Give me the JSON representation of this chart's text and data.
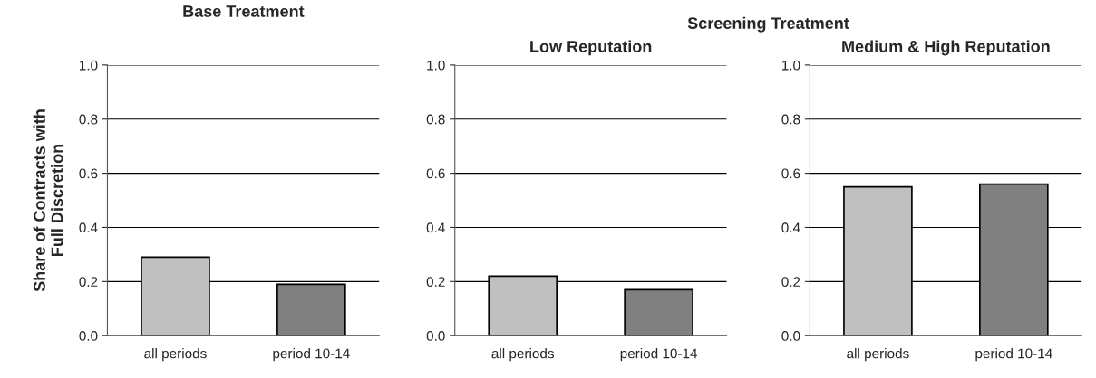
{
  "chart_data": [
    {
      "type": "bar",
      "title": "Base Treatment",
      "ylabel": "Share of Contracts with\nFull Discretion",
      "categories": [
        "all periods",
        "period 10-14"
      ],
      "values": [
        0.29,
        0.19
      ],
      "colors": [
        "#c0c0c0",
        "#808080"
      ],
      "ylim": [
        0,
        1
      ],
      "yticks": [
        {
          "value": 0,
          "label": "0.0"
        },
        {
          "value": 0.2,
          "label": "0.2"
        },
        {
          "value": 0.4,
          "label": "0.4"
        },
        {
          "value": 0.6,
          "label": "0.6"
        },
        {
          "value": 0.8,
          "label": "0.8"
        },
        {
          "value": 1,
          "label": "1.0"
        }
      ],
      "grid": "y"
    },
    {
      "type": "bar",
      "title": "Low Reputation",
      "annotations": [
        "Screening Treatment"
      ],
      "categories": [
        "all periods",
        "period 10-14"
      ],
      "values": [
        0.22,
        0.17
      ],
      "colors": [
        "#c0c0c0",
        "#808080"
      ],
      "ylim": [
        0,
        1
      ],
      "yticks": [
        {
          "value": 0,
          "label": "0.0"
        },
        {
          "value": 0.2,
          "label": "0.2"
        },
        {
          "value": 0.4,
          "label": "0.4"
        },
        {
          "value": 0.6,
          "label": "0.6"
        },
        {
          "value": 0.8,
          "label": "0.8"
        },
        {
          "value": 1,
          "label": "1.0"
        }
      ],
      "grid": "y"
    },
    {
      "type": "bar",
      "title": "Medium & High Reputation",
      "categories": [
        "all periods",
        "period 10-14"
      ],
      "values": [
        0.55,
        0.56
      ],
      "colors": [
        "#c0c0c0",
        "#808080"
      ],
      "ylim": [
        0,
        1
      ],
      "yticks": [
        {
          "value": 0,
          "label": "0.0"
        },
        {
          "value": 0.2,
          "label": "0.2"
        },
        {
          "value": 0.4,
          "label": "0.4"
        },
        {
          "value": 0.6,
          "label": "0.6"
        },
        {
          "value": 0.8,
          "label": "0.8"
        },
        {
          "value": 1,
          "label": "1.0"
        }
      ],
      "grid": "y"
    }
  ]
}
